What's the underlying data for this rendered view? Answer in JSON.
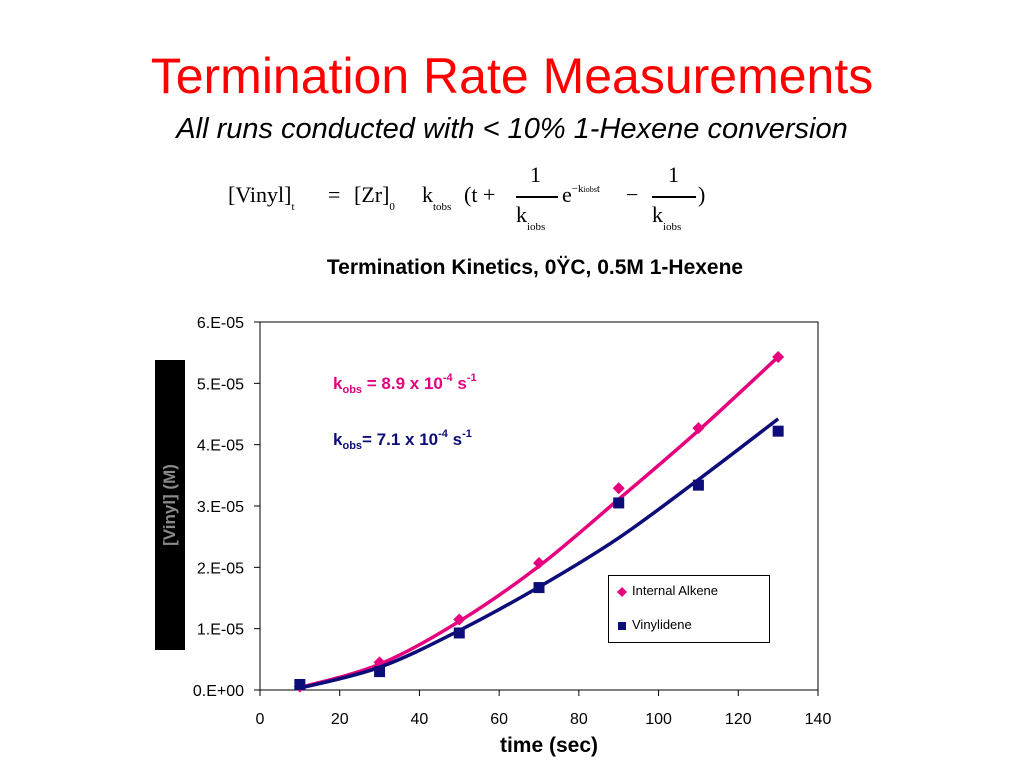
{
  "slide": {
    "title": "Termination Rate Measurements",
    "subtitle": "All runs conducted with < 10% 1-Hexene conversion"
  },
  "equation": {
    "lhs": "[Vinyl]",
    "lhs_sub": "t",
    "eq": "=",
    "zr": "[Zr]",
    "zr_sub": "0",
    "k": "k",
    "k_sub": "tobs",
    "open": "(t +",
    "num1": "1",
    "den1_k": "k",
    "den1_sub": "iobs",
    "exp_e": "e",
    "exp_minus": "−",
    "exp_k": "k",
    "exp_k_sub": "iobs",
    "exp_t": "t",
    "minus": "−",
    "num2": "1",
    "den2_k": "k",
    "den2_sub": "iobs",
    "close": ")"
  },
  "annotations": {
    "pink": {
      "k": "k",
      "sub": "obs",
      "text": " = 8.9 x 10",
      "sup": "-4",
      "unit": " s",
      "unit_sup": "-1"
    },
    "blue": {
      "k": "k",
      "sub": "obs",
      "text": "= 7.1 x 10",
      "sup": "-4",
      "unit": " s",
      "unit_sup": "-1"
    }
  },
  "colors": {
    "title": "#ff0000",
    "internal_alkene": "#e6007e",
    "vinylidene": "#0d0d7a"
  },
  "chart_data": {
    "type": "scatter",
    "title": "Termination Kinetics, 0ŸC, 0.5M 1-Hexene",
    "xlabel": "time (sec)",
    "ylabel": "[Vinyl] (M)",
    "xlim": [
      0,
      140
    ],
    "ylim": [
      0,
      6e-05
    ],
    "x_ticks": [
      "0",
      "20",
      "40",
      "60",
      "80",
      "100",
      "120",
      "140"
    ],
    "y_ticks": [
      "0.E+00",
      "1.E-05",
      "2.E-05",
      "3.E-05",
      "4.E-05",
      "5.E-05",
      "6.E-05"
    ],
    "grid": false,
    "legend_position": "bottom-right",
    "series": [
      {
        "name": "Internal Alkene",
        "marker": "diamond",
        "x": [
          10,
          30,
          50,
          70,
          90,
          110,
          130
        ],
        "y": [
          5.5e-07,
          4.5e-06,
          1.15e-05,
          2.07e-05,
          3.29e-05,
          4.27e-05,
          5.43e-05
        ],
        "fit_x": [
          10,
          30,
          50,
          70,
          90,
          110,
          130
        ],
        "fit_y": [
          4e-07,
          4.2e-06,
          1.12e-05,
          2.02e-05,
          3.11e-05,
          4.23e-05,
          5.43e-05
        ]
      },
      {
        "name": "Vinylidene",
        "marker": "square",
        "x": [
          10,
          30,
          50,
          70,
          90,
          110,
          130
        ],
        "y": [
          9e-07,
          3e-06,
          9.3e-06,
          1.67e-05,
          3.05e-05,
          3.34e-05,
          4.22e-05
        ],
        "fit_x": [
          10,
          30,
          50,
          70,
          90,
          110,
          130
        ],
        "fit_y": [
          3e-07,
          3.7e-06,
          9.7e-06,
          1.68e-05,
          2.48e-05,
          3.43e-05,
          4.42e-05
        ]
      }
    ]
  }
}
